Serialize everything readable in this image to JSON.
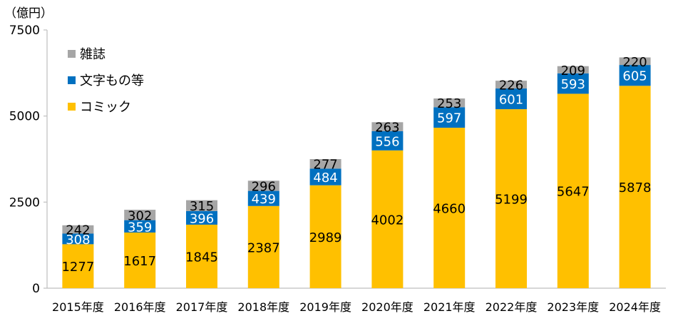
{
  "chart_data": {
    "type": "bar",
    "stacked": true,
    "unit_label": "（億円）",
    "categories": [
      "2015年度",
      "2016年度",
      "2017年度",
      "2018年度",
      "2019年度",
      "2020年度",
      "2021年度",
      "2022年度",
      "2023年度",
      "2024年度"
    ],
    "series": [
      {
        "name": "コミック",
        "color": "#ffc000",
        "label_color": "#000000",
        "values": [
          1277,
          1617,
          1845,
          2387,
          2989,
          4002,
          4660,
          5199,
          5647,
          5878
        ]
      },
      {
        "name": "文字もの等",
        "color": "#0070c0",
        "label_color": "#ffffff",
        "values": [
          308,
          359,
          396,
          439,
          484,
          556,
          597,
          601,
          593,
          605
        ]
      },
      {
        "name": "雑誌",
        "color": "#a6a6a6",
        "label_color": "#000000",
        "values": [
          242,
          302,
          315,
          296,
          277,
          263,
          253,
          226,
          209,
          220
        ]
      }
    ],
    "legend_order": [
      "雑誌",
      "文字もの等",
      "コミック"
    ],
    "yticks": [
      0,
      2500,
      5000,
      7500
    ],
    "ylim": [
      0,
      7500
    ],
    "grid": false,
    "legend_position": "top-left"
  }
}
